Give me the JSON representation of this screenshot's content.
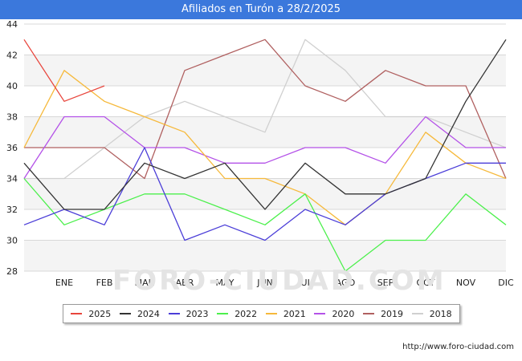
{
  "header": {
    "title": "Afiliados en Turón a 28/2/2025"
  },
  "watermark": "FORO-CIUDAD.COM",
  "footer": {
    "url": "http://www.foro-ciudad.com"
  },
  "chart_data": {
    "type": "line",
    "title": "Afiliados en Turón a 28/2/2025",
    "xlabel": "",
    "ylabel": "",
    "categories": [
      "",
      "ENE",
      "FEB",
      "MAR",
      "ABR",
      "MAY",
      "JUN",
      "JUL",
      "AGO",
      "SEP",
      "OCT",
      "NOV",
      "DIC"
    ],
    "ylim": [
      28,
      44
    ],
    "yticks": [
      28,
      30,
      32,
      34,
      36,
      38,
      40,
      42,
      44
    ],
    "grid": true,
    "legend_position": "bottom",
    "series": [
      {
        "name": "2025",
        "color": "#e8453c",
        "values": [
          43,
          39,
          40,
          null,
          null,
          null,
          null,
          null,
          null,
          null,
          null,
          null,
          null
        ]
      },
      {
        "name": "2024",
        "color": "#333333",
        "values": [
          35,
          32,
          32,
          35,
          34,
          35,
          32,
          35,
          33,
          33,
          34,
          39,
          43
        ]
      },
      {
        "name": "2023",
        "color": "#4b3ed8",
        "values": [
          31,
          32,
          31,
          36,
          30,
          31,
          30,
          32,
          31,
          33,
          34,
          35,
          35
        ]
      },
      {
        "name": "2022",
        "color": "#4cf04c",
        "values": [
          34,
          31,
          32,
          33,
          33,
          32,
          31,
          33,
          28,
          30,
          30,
          33,
          31
        ]
      },
      {
        "name": "2021",
        "color": "#f6b93b",
        "values": [
          36,
          41,
          39,
          38,
          37,
          34,
          34,
          33,
          31,
          33,
          37,
          35,
          34
        ]
      },
      {
        "name": "2020",
        "color": "#b452e8",
        "values": [
          34,
          38,
          38,
          36,
          36,
          35,
          35,
          36,
          36,
          35,
          38,
          36,
          36
        ]
      },
      {
        "name": "2019",
        "color": "#b06060",
        "values": [
          36,
          36,
          36,
          34,
          41,
          42,
          43,
          40,
          39,
          41,
          40,
          40,
          34
        ]
      },
      {
        "name": "2018",
        "color": "#d0d0d0",
        "values": [
          34,
          34,
          36,
          38,
          39,
          38,
          37,
          43,
          41,
          38,
          38,
          37,
          36
        ]
      }
    ]
  }
}
